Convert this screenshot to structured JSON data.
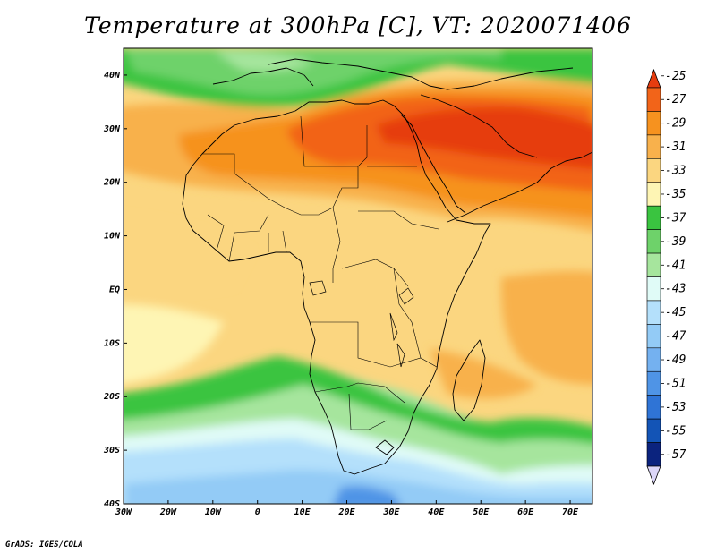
{
  "title": "Temperature at 300hPa [C], VT: 2020071406",
  "credit": "GrADS: IGES/COLA",
  "lat_labels": [
    {
      "value": 40,
      "text": "40N"
    },
    {
      "value": 30,
      "text": "30N"
    },
    {
      "value": 20,
      "text": "20N"
    },
    {
      "value": 10,
      "text": "10N"
    },
    {
      "value": 0,
      "text": "EQ"
    },
    {
      "value": -10,
      "text": "10S"
    },
    {
      "value": -20,
      "text": "20S"
    },
    {
      "value": -30,
      "text": "30S"
    },
    {
      "value": -40,
      "text": "40S"
    }
  ],
  "lon_labels": [
    {
      "value": -30,
      "text": "30W"
    },
    {
      "value": -20,
      "text": "20W"
    },
    {
      "value": -10,
      "text": "10W"
    },
    {
      "value": 0,
      "text": "0"
    },
    {
      "value": 10,
      "text": "10E"
    },
    {
      "value": 20,
      "text": "20E"
    },
    {
      "value": 30,
      "text": "30E"
    },
    {
      "value": 40,
      "text": "40E"
    },
    {
      "value": 50,
      "text": "50E"
    },
    {
      "value": 60,
      "text": "60E"
    },
    {
      "value": 70,
      "text": "70E"
    }
  ],
  "extent": {
    "lon_min": -30,
    "lon_max": 75,
    "lat_min": -40,
    "lat_max": 45
  },
  "colorbar": {
    "labels": [
      "-25",
      "-27",
      "-29",
      "-31",
      "-33",
      "-35",
      "-37",
      "-39",
      "-41",
      "-43",
      "-45",
      "-47",
      "-49",
      "-51",
      "-53",
      "-55",
      "-57"
    ],
    "colors": [
      "#e63c0f",
      "#f26419",
      "#f6921f",
      "#f8b14c",
      "#fbd680",
      "#fef5b4",
      "#3ac440",
      "#6ed26a",
      "#a6e59d",
      "#e0fbf7",
      "#b4e0fb",
      "#93cbf6",
      "#74b1f0",
      "#4f94e6",
      "#2f74d6",
      "#1354b6",
      "#0b237e"
    ],
    "over_color": "#e63c0f",
    "under_color": "#dcd6f8"
  }
}
